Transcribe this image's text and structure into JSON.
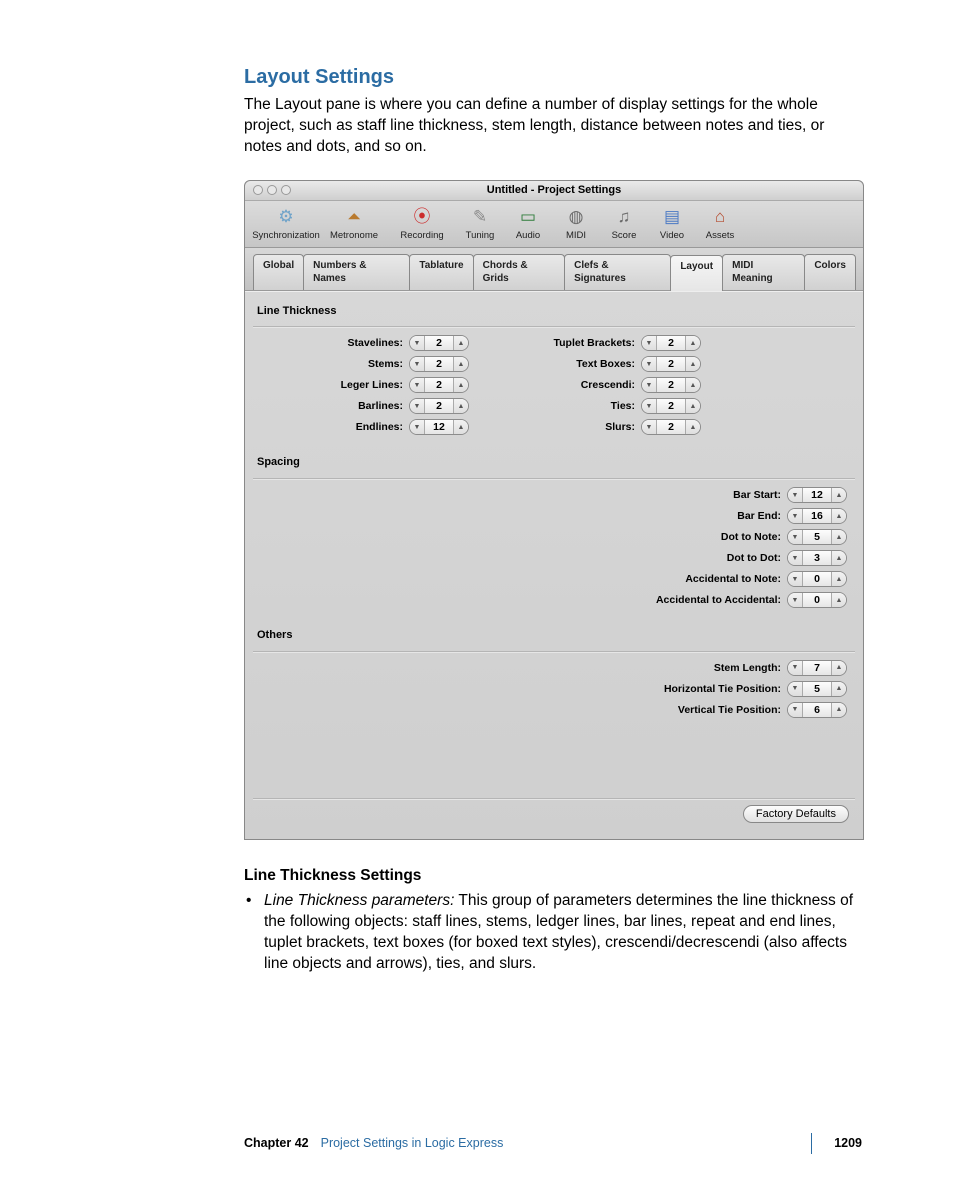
{
  "heading": "Layout Settings",
  "intro": "The Layout pane is where you can define a number of display settings for the whole project, such as staff line thickness, stem length, distance between notes and ties, or notes and dots, and so on.",
  "window": {
    "title": "Untitled - Project Settings",
    "toolbar": [
      {
        "label": "Synchronization",
        "icon": "⚙",
        "color": "#6fa3c9"
      },
      {
        "label": "Metronome",
        "icon": "⏶",
        "color": "#b97a2e"
      },
      {
        "label": "Recording",
        "icon": "⦿",
        "color": "#cc2b2b"
      },
      {
        "label": "Tuning",
        "icon": "✎",
        "color": "#8a8a8a"
      },
      {
        "label": "Audio",
        "icon": "▭",
        "color": "#2e7c3a"
      },
      {
        "label": "MIDI",
        "icon": "◍",
        "color": "#6b6b6b"
      },
      {
        "label": "Score",
        "icon": "♫",
        "color": "#6b6b6b"
      },
      {
        "label": "Video",
        "icon": "▤",
        "color": "#4b79c4"
      },
      {
        "label": "Assets",
        "icon": "⌂",
        "color": "#b44b2e"
      }
    ],
    "tabs": [
      "Global",
      "Numbers & Names",
      "Tablature",
      "Chords & Grids",
      "Clefs & Signatures",
      "Layout",
      "MIDI Meaning",
      "Colors"
    ],
    "activeTab": "Layout",
    "groups": {
      "lineThickness": {
        "title": "Line Thickness",
        "left": [
          {
            "label": "Stavelines:",
            "value": "2"
          },
          {
            "label": "Stems:",
            "value": "2"
          },
          {
            "label": "Leger Lines:",
            "value": "2"
          },
          {
            "label": "Barlines:",
            "value": "2"
          },
          {
            "label": "Endlines:",
            "value": "12"
          }
        ],
        "right": [
          {
            "label": "Tuplet Brackets:",
            "value": "2"
          },
          {
            "label": "Text Boxes:",
            "value": "2"
          },
          {
            "label": "Crescendi:",
            "value": "2"
          },
          {
            "label": "Ties:",
            "value": "2"
          },
          {
            "label": "Slurs:",
            "value": "2"
          }
        ]
      },
      "spacing": {
        "title": "Spacing",
        "items": [
          {
            "label": "Bar Start:",
            "value": "12"
          },
          {
            "label": "Bar End:",
            "value": "16"
          },
          {
            "label": "Dot to Note:",
            "value": "5"
          },
          {
            "label": "Dot to Dot:",
            "value": "3"
          },
          {
            "label": "Accidental to Note:",
            "value": "0"
          },
          {
            "label": "Accidental to Accidental:",
            "value": "0"
          }
        ]
      },
      "others": {
        "title": "Others",
        "items": [
          {
            "label": "Stem Length:",
            "value": "7"
          },
          {
            "label": "Horizontal Tie Position:",
            "value": "5"
          },
          {
            "label": "Vertical Tie Position:",
            "value": "6"
          }
        ]
      }
    },
    "factoryDefaults": "Factory Defaults"
  },
  "sub": {
    "title": "Line Thickness Settings",
    "paramLabel": "Line Thickness parameters:",
    "paramText": "This group of parameters determines the line thickness of the following objects:  staff lines, stems, ledger lines, bar lines, repeat and end lines, tuplet brackets, text boxes (for boxed text styles), crescendi/decrescendi (also affects line objects and arrows), ties, and slurs."
  },
  "footer": {
    "chapter": "Chapter 42",
    "link": "Project Settings in Logic Express",
    "page": "1209"
  }
}
